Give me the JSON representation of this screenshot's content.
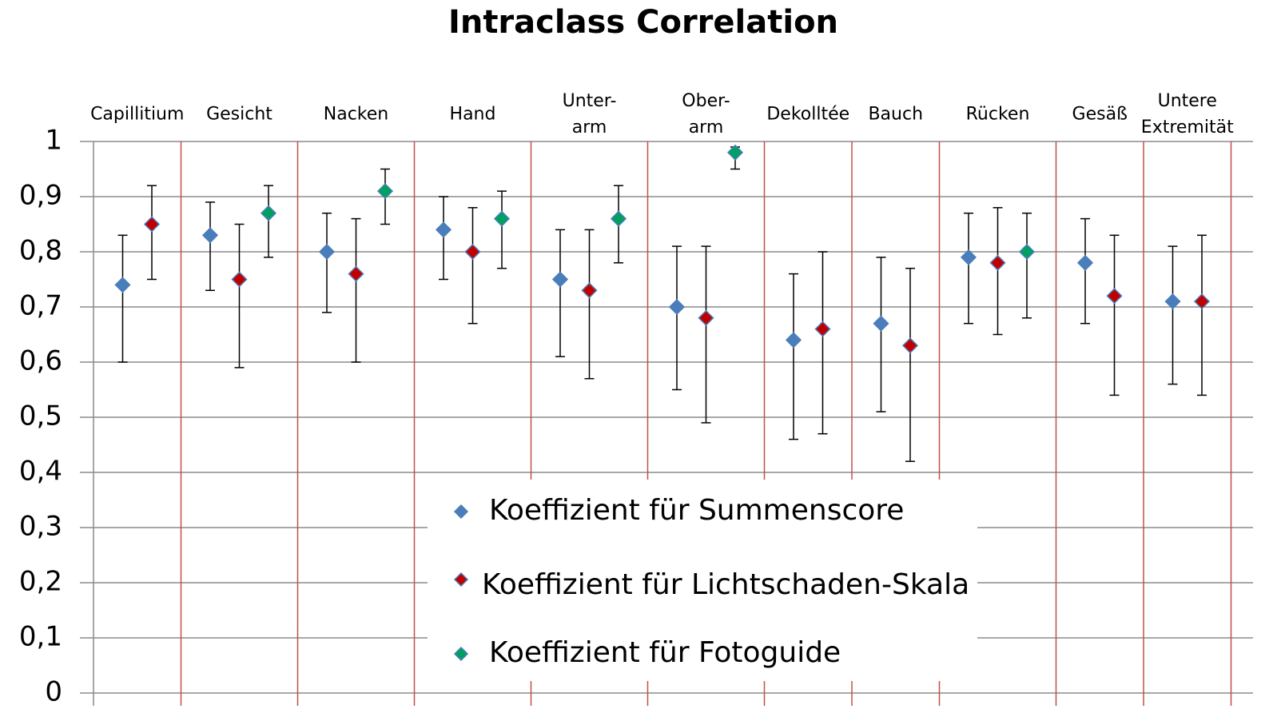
{
  "chart_data": {
    "type": "scatter",
    "title": "Intraclass Correlation",
    "categories": [
      "Capillitium",
      "Gesicht",
      "Nacken",
      "Hand",
      "Unter-\narm",
      "Ober-\narm",
      "Dekolltée",
      "Bauch",
      "Rücken",
      "Gesäß",
      "Untere\nExtremität"
    ],
    "series": [
      {
        "name": "Koeffizient für Summenscore",
        "color": "#4a7ebb",
        "values": [
          0.74,
          0.83,
          0.8,
          0.84,
          0.75,
          0.7,
          0.64,
          0.67,
          0.79,
          0.78,
          0.71
        ],
        "lower": [
          0.6,
          0.73,
          0.69,
          0.75,
          0.61,
          0.55,
          0.46,
          0.51,
          0.67,
          0.67,
          0.56
        ],
        "upper": [
          0.83,
          0.89,
          0.87,
          0.9,
          0.84,
          0.81,
          0.76,
          0.79,
          0.87,
          0.86,
          0.81
        ]
      },
      {
        "name": "Koeffizient für Lichtschaden-Skala",
        "color": "#c00000",
        "values": [
          0.85,
          0.75,
          0.76,
          0.8,
          0.73,
          0.68,
          0.66,
          0.63,
          0.78,
          0.72,
          0.71
        ],
        "lower": [
          0.75,
          0.59,
          0.6,
          0.67,
          0.57,
          0.49,
          0.47,
          0.42,
          0.65,
          0.54,
          0.54
        ],
        "upper": [
          0.92,
          0.85,
          0.86,
          0.88,
          0.84,
          0.81,
          0.8,
          0.77,
          0.88,
          0.83,
          0.83
        ]
      },
      {
        "name": "Koeffizient für Fotoguide",
        "color": "#00a060",
        "values": [
          null,
          0.87,
          0.91,
          0.86,
          0.86,
          0.98,
          null,
          null,
          0.8,
          null,
          null
        ],
        "lower": [
          null,
          0.79,
          0.85,
          0.77,
          0.78,
          0.95,
          null,
          null,
          0.68,
          null,
          null
        ],
        "upper": [
          null,
          0.92,
          0.95,
          0.91,
          0.92,
          0.99,
          null,
          null,
          0.87,
          null,
          null
        ]
      }
    ],
    "ylim": [
      0,
      1
    ],
    "yticks": [
      0,
      {
        "value": 0.1,
        "label": "0,1"
      },
      {
        "value": 0.2,
        "label": "0,2"
      },
      {
        "value": 0.3,
        "label": "0,3"
      },
      {
        "value": 0.4,
        "label": "0,4"
      },
      {
        "value": 0.5,
        "label": "0,5"
      },
      {
        "value": 0.6,
        "label": "0,6"
      },
      {
        "value": 0.7,
        "label": "0,7"
      },
      {
        "value": 0.8,
        "label": "0,8"
      },
      {
        "value": 0.9,
        "label": "0,9"
      },
      1
    ],
    "grid": true
  }
}
